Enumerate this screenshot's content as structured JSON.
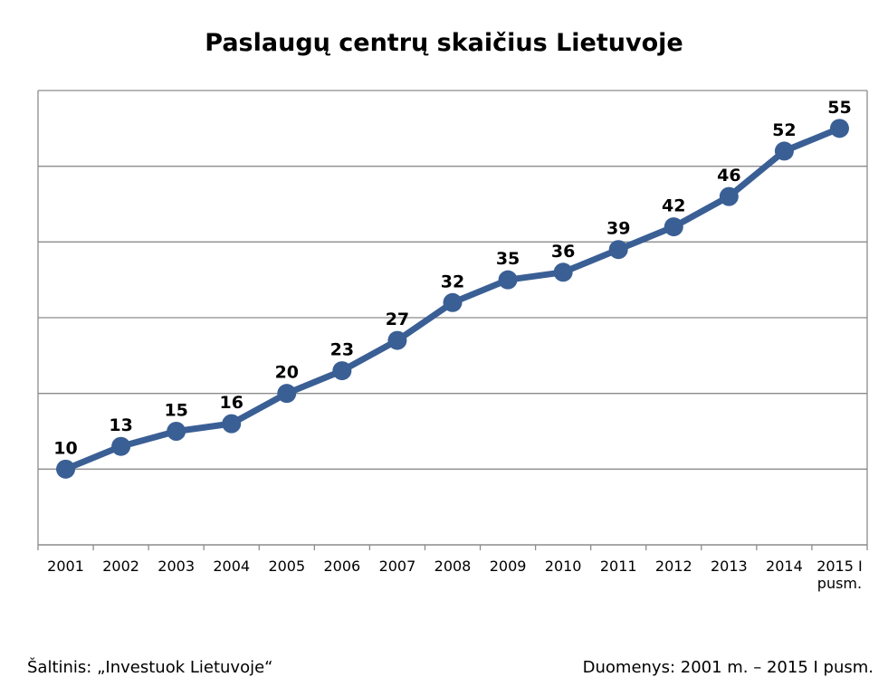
{
  "chart_data": {
    "type": "line",
    "title": "Paslaugų centrų skaičius Lietuvoje",
    "categories": [
      [
        "2001"
      ],
      [
        "2002"
      ],
      [
        "2003"
      ],
      [
        "2004"
      ],
      [
        "2005"
      ],
      [
        "2006"
      ],
      [
        "2007"
      ],
      [
        "2008"
      ],
      [
        "2009"
      ],
      [
        "2010"
      ],
      [
        "2011"
      ],
      [
        "2012"
      ],
      [
        "2013"
      ],
      [
        "2014"
      ],
      [
        "2015 I",
        "pusm."
      ]
    ],
    "values": [
      10,
      13,
      15,
      16,
      20,
      23,
      27,
      32,
      35,
      36,
      39,
      42,
      46,
      52,
      55
    ],
    "ylim": [
      0,
      60
    ],
    "grid": true,
    "color": "#3a5f95"
  },
  "footer": {
    "source": "Šaltinis: „Investuok Lietuvoje“",
    "data_range": "Duomenys: 2001 m. – 2015 I pusm."
  }
}
